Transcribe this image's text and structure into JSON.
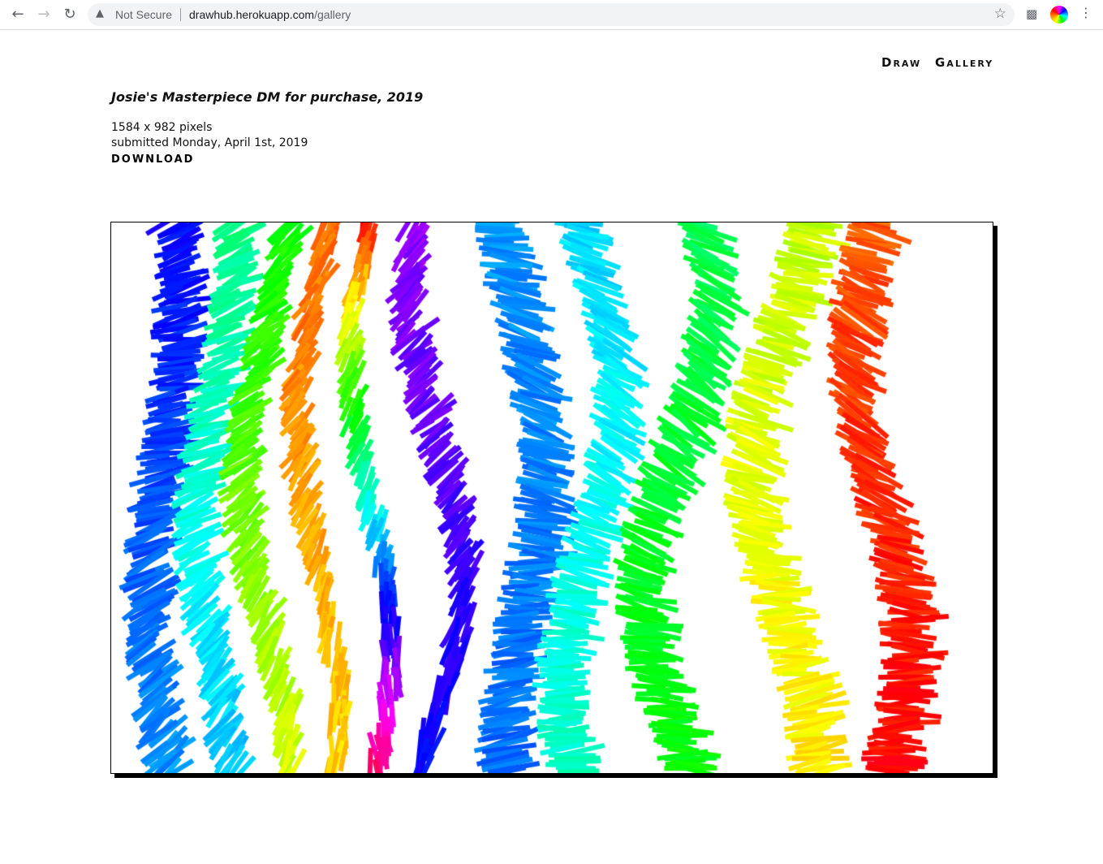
{
  "browser": {
    "security_label": "Not Secure",
    "url_host": "drawhub.herokuapp.com",
    "url_path": "/gallery",
    "icons": [
      "back-arrow-icon",
      "forward-arrow-icon",
      "reload-icon",
      "warning-icon",
      "star-icon",
      "puzzle-icon",
      "avatar",
      "kebab-menu-icon"
    ]
  },
  "nav": {
    "draw": "Draw",
    "gallery": "Gallery"
  },
  "drawing": {
    "title": "Josie's Masterpiece DM for purchase, 2019",
    "dimensions": "1584 x 982 pixels",
    "submitted": "submitted Monday, April 1st, 2019",
    "download_label": "DOWNLOAD"
  }
}
